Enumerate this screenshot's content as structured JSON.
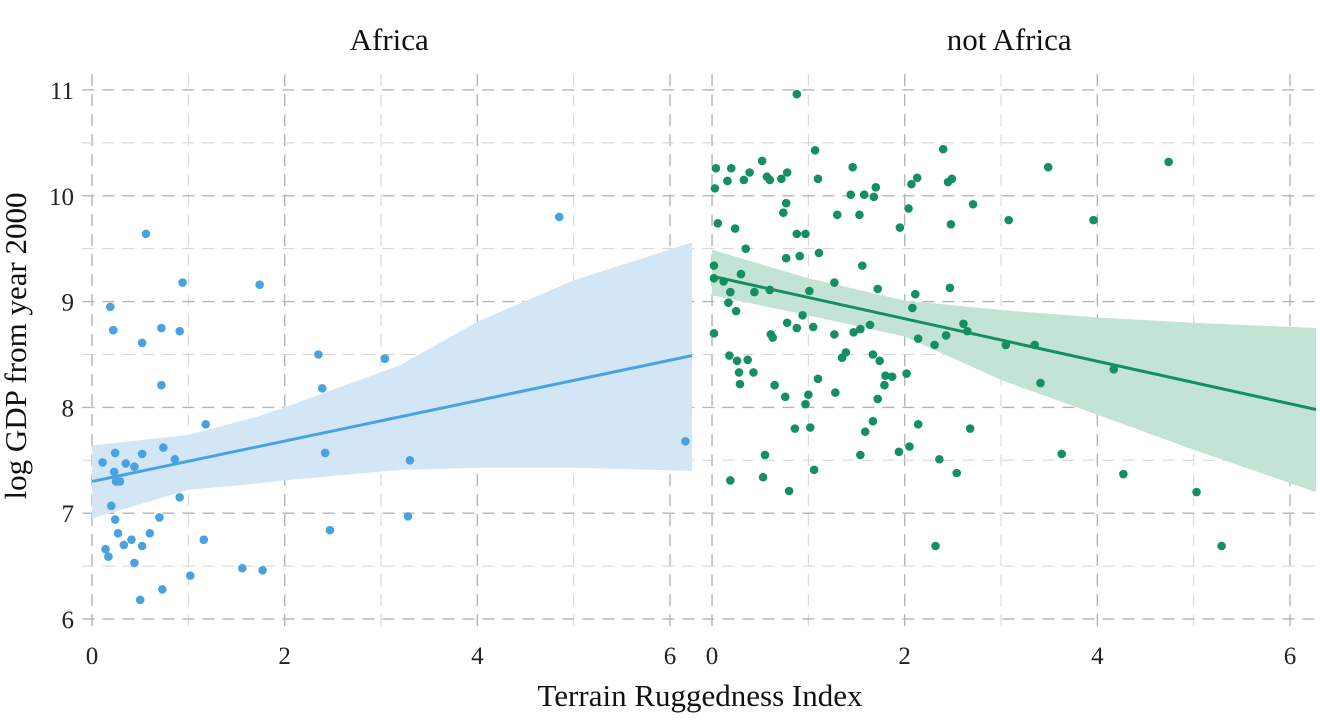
{
  "chart_data": {
    "type": "scatter",
    "xlabel": "Terrain Ruggedness Index",
    "ylabel": "log GDP from year 2000",
    "xlim": [
      -0.1,
      6.27
    ],
    "ylim": [
      5.9,
      11.15
    ],
    "xticks": [
      0,
      2,
      4,
      6
    ],
    "yticks": [
      6,
      7,
      8,
      9,
      10,
      11
    ],
    "grid": true,
    "legend": "none",
    "panels": [
      {
        "title": "Africa",
        "point_color": "#48a2e0",
        "line_color": "#48a2e0",
        "band_color": "#d2e6f6",
        "points": [
          [
            0.56,
            9.64
          ],
          [
            0.94,
            9.18
          ],
          [
            0.19,
            8.95
          ],
          [
            0.22,
            8.73
          ],
          [
            0.72,
            8.75
          ],
          [
            0.91,
            8.72
          ],
          [
            0.52,
            8.61
          ],
          [
            0.72,
            8.21
          ],
          [
            1.74,
            9.16
          ],
          [
            2.35,
            8.5
          ],
          [
            2.39,
            8.18
          ],
          [
            3.04,
            8.46
          ],
          [
            4.85,
            9.8
          ],
          [
            6.16,
            7.68
          ],
          [
            1.18,
            7.84
          ],
          [
            0.74,
            7.62
          ],
          [
            0.86,
            7.51
          ],
          [
            0.24,
            7.57
          ],
          [
            0.52,
            7.56
          ],
          [
            0.11,
            7.48
          ],
          [
            0.35,
            7.47
          ],
          [
            0.44,
            7.44
          ],
          [
            0.23,
            7.39
          ],
          [
            0.25,
            7.3
          ],
          [
            0.29,
            7.3
          ],
          [
            2.42,
            7.57
          ],
          [
            3.3,
            7.5
          ],
          [
            0.91,
            7.15
          ],
          [
            0.2,
            7.07
          ],
          [
            0.24,
            6.94
          ],
          [
            0.7,
            6.96
          ],
          [
            3.28,
            6.97
          ],
          [
            2.47,
            6.84
          ],
          [
            0.27,
            6.81
          ],
          [
            0.14,
            6.66
          ],
          [
            0.33,
            6.7
          ],
          [
            0.41,
            6.75
          ],
          [
            0.52,
            6.69
          ],
          [
            0.6,
            6.81
          ],
          [
            1.16,
            6.75
          ],
          [
            0.17,
            6.59
          ],
          [
            0.44,
            6.53
          ],
          [
            1.02,
            6.41
          ],
          [
            1.56,
            6.48
          ],
          [
            1.77,
            6.46
          ],
          [
            0.73,
            6.28
          ],
          [
            0.5,
            6.18
          ]
        ],
        "fit": {
          "x": [
            0,
            6.23
          ],
          "y": [
            7.3,
            8.49
          ]
        },
        "ci": {
          "x": [
            0,
            1,
            1.71,
            2,
            3.2,
            4,
            5,
            6.23
          ],
          "lower": [
            6.95,
            7.22,
            7.28,
            7.31,
            7.41,
            7.43,
            7.43,
            7.4
          ],
          "upper": [
            7.64,
            7.74,
            7.91,
            8.0,
            8.4,
            8.81,
            9.2,
            9.56
          ]
        }
      },
      {
        "title": "not Africa",
        "point_color": "#148f5f",
        "line_color": "#148f5f",
        "band_color": "#c3e3d4",
        "points": [
          [
            0.88,
            10.96
          ],
          [
            1.07,
            10.43
          ],
          [
            2.4,
            10.44
          ],
          [
            0.04,
            10.26
          ],
          [
            0.2,
            10.26
          ],
          [
            0.52,
            10.33
          ],
          [
            0.39,
            10.22
          ],
          [
            0.16,
            10.14
          ],
          [
            0.33,
            10.15
          ],
          [
            0.57,
            10.18
          ],
          [
            0.6,
            10.15
          ],
          [
            0.72,
            10.16
          ],
          [
            0.78,
            10.22
          ],
          [
            1.1,
            10.16
          ],
          [
            1.46,
            10.27
          ],
          [
            2.13,
            10.17
          ],
          [
            2.07,
            10.11
          ],
          [
            2.45,
            10.13
          ],
          [
            2.49,
            10.16
          ],
          [
            0.03,
            10.07
          ],
          [
            1.7,
            10.08
          ],
          [
            1.44,
            10.01
          ],
          [
            1.58,
            10.01
          ],
          [
            1.68,
            9.99
          ],
          [
            0.77,
            9.93
          ],
          [
            0.74,
            9.84
          ],
          [
            1.3,
            9.82
          ],
          [
            1.53,
            9.82
          ],
          [
            2.04,
            9.88
          ],
          [
            2.71,
            9.92
          ],
          [
            3.08,
            9.77
          ],
          [
            2.48,
            9.73
          ],
          [
            0.06,
            9.74
          ],
          [
            0.24,
            9.69
          ],
          [
            1.95,
            9.7
          ],
          [
            0.88,
            9.64
          ],
          [
            0.97,
            9.64
          ],
          [
            0.35,
            9.5
          ],
          [
            0.77,
            9.41
          ],
          [
            0.91,
            9.43
          ],
          [
            1.11,
            9.46
          ],
          [
            1.56,
            9.34
          ],
          [
            0.02,
            9.34
          ],
          [
            0.3,
            9.26
          ],
          [
            0.02,
            9.22
          ],
          [
            0.12,
            9.19
          ],
          [
            0.19,
            9.09
          ],
          [
            0.44,
            9.09
          ],
          [
            0.6,
            9.11
          ],
          [
            1.01,
            9.1
          ],
          [
            1.27,
            9.18
          ],
          [
            1.72,
            9.12
          ],
          [
            2.11,
            9.07
          ],
          [
            2.47,
            9.13
          ],
          [
            0.17,
            8.99
          ],
          [
            0.25,
            8.91
          ],
          [
            2.08,
            8.94
          ],
          [
            0.94,
            8.87
          ],
          [
            0.78,
            8.8
          ],
          [
            0.88,
            8.75
          ],
          [
            1.05,
            8.76
          ],
          [
            1.64,
            8.78
          ],
          [
            1.54,
            8.74
          ],
          [
            2.61,
            8.79
          ],
          [
            2.65,
            8.72
          ],
          [
            0.02,
            8.7
          ],
          [
            0.61,
            8.69
          ],
          [
            0.63,
            8.66
          ],
          [
            1.27,
            8.69
          ],
          [
            1.47,
            8.71
          ],
          [
            2.14,
            8.65
          ],
          [
            2.31,
            8.59
          ],
          [
            2.43,
            8.68
          ],
          [
            3.05,
            8.59
          ],
          [
            0.18,
            8.49
          ],
          [
            0.26,
            8.44
          ],
          [
            0.37,
            8.45
          ],
          [
            0.28,
            8.33
          ],
          [
            0.43,
            8.33
          ],
          [
            0.29,
            8.22
          ],
          [
            0.65,
            8.21
          ],
          [
            0.76,
            8.1
          ],
          [
            1.0,
            8.12
          ],
          [
            0.97,
            8.03
          ],
          [
            1.1,
            8.27
          ],
          [
            1.28,
            8.14
          ],
          [
            1.35,
            8.47
          ],
          [
            1.39,
            8.52
          ],
          [
            1.67,
            8.5
          ],
          [
            1.74,
            8.44
          ],
          [
            1.8,
            8.3
          ],
          [
            1.87,
            8.29
          ],
          [
            2.02,
            8.32
          ],
          [
            1.79,
            8.21
          ],
          [
            1.72,
            8.08
          ],
          [
            1.67,
            7.87
          ],
          [
            1.59,
            7.77
          ],
          [
            0.86,
            7.8
          ],
          [
            1.02,
            7.81
          ],
          [
            2.14,
            7.84
          ],
          [
            2.68,
            7.8
          ],
          [
            0.55,
            7.55
          ],
          [
            1.54,
            7.55
          ],
          [
            1.94,
            7.58
          ],
          [
            2.05,
            7.63
          ],
          [
            2.36,
            7.51
          ],
          [
            2.54,
            7.38
          ],
          [
            0.19,
            7.31
          ],
          [
            0.53,
            7.34
          ],
          [
            1.06,
            7.41
          ],
          [
            0.8,
            7.21
          ],
          [
            2.32,
            6.69
          ],
          [
            3.49,
            10.27
          ],
          [
            4.74,
            10.32
          ],
          [
            3.96,
            9.77
          ],
          [
            3.35,
            8.59
          ],
          [
            3.41,
            8.23
          ],
          [
            4.17,
            8.36
          ],
          [
            3.63,
            7.56
          ],
          [
            4.27,
            7.37
          ],
          [
            5.03,
            7.2
          ],
          [
            5.29,
            6.69
          ]
        ],
        "fit": {
          "x": [
            0,
            6.27
          ],
          "y": [
            9.24,
            7.98
          ]
        },
        "ci": {
          "x": [
            0,
            1,
            2,
            3,
            4,
            5,
            6.27
          ],
          "lower": [
            9.06,
            8.87,
            8.67,
            8.26,
            7.93,
            7.6,
            7.2
          ],
          "upper": [
            9.49,
            9.22,
            9.01,
            8.92,
            8.85,
            8.8,
            8.75
          ]
        }
      }
    ]
  }
}
